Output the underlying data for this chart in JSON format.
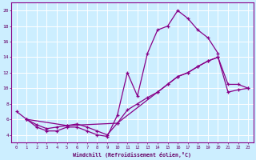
{
  "xlabel": "Windchill (Refroidissement éolien,°C)",
  "background_color": "#cceeff",
  "grid_color": "#ffffff",
  "line_color": "#880088",
  "xlim": [
    -0.5,
    23.5
  ],
  "ylim": [
    3.0,
    21.0
  ],
  "xticks": [
    0,
    1,
    2,
    3,
    4,
    5,
    6,
    7,
    8,
    9,
    10,
    11,
    12,
    13,
    14,
    15,
    16,
    17,
    18,
    19,
    20,
    21,
    22,
    23
  ],
  "yticks": [
    4,
    6,
    8,
    10,
    12,
    14,
    16,
    18,
    20
  ],
  "line1_x": [
    0,
    1,
    2,
    3,
    4,
    5,
    6,
    7,
    8,
    9,
    10,
    11,
    12,
    13,
    14,
    15,
    16,
    17,
    18,
    19,
    20
  ],
  "line1_y": [
    7.0,
    6.0,
    5.0,
    4.5,
    4.5,
    5.0,
    5.0,
    4.5,
    4.0,
    3.8,
    6.5,
    12.0,
    9.0,
    14.5,
    17.5,
    18.0,
    20.0,
    19.0,
    17.5,
    16.5,
    14.5
  ],
  "line2_x": [
    1,
    2,
    3,
    4,
    5,
    6,
    7,
    8,
    9,
    10,
    11,
    12,
    13,
    14,
    15,
    16,
    17,
    18,
    19,
    20,
    21,
    22,
    23
  ],
  "line2_y": [
    6.0,
    5.3,
    4.8,
    5.0,
    5.2,
    5.4,
    5.0,
    4.5,
    4.0,
    5.5,
    7.2,
    8.0,
    8.8,
    9.5,
    10.5,
    11.5,
    12.0,
    12.8,
    13.5,
    14.0,
    9.5,
    9.8,
    10.0
  ],
  "line3_x": [
    1,
    5,
    10,
    14,
    15,
    16,
    17,
    18,
    19,
    20,
    21,
    22,
    23
  ],
  "line3_y": [
    6.0,
    5.2,
    5.5,
    9.5,
    10.5,
    11.5,
    12.0,
    12.8,
    13.5,
    14.0,
    10.5,
    10.5,
    10.0
  ]
}
